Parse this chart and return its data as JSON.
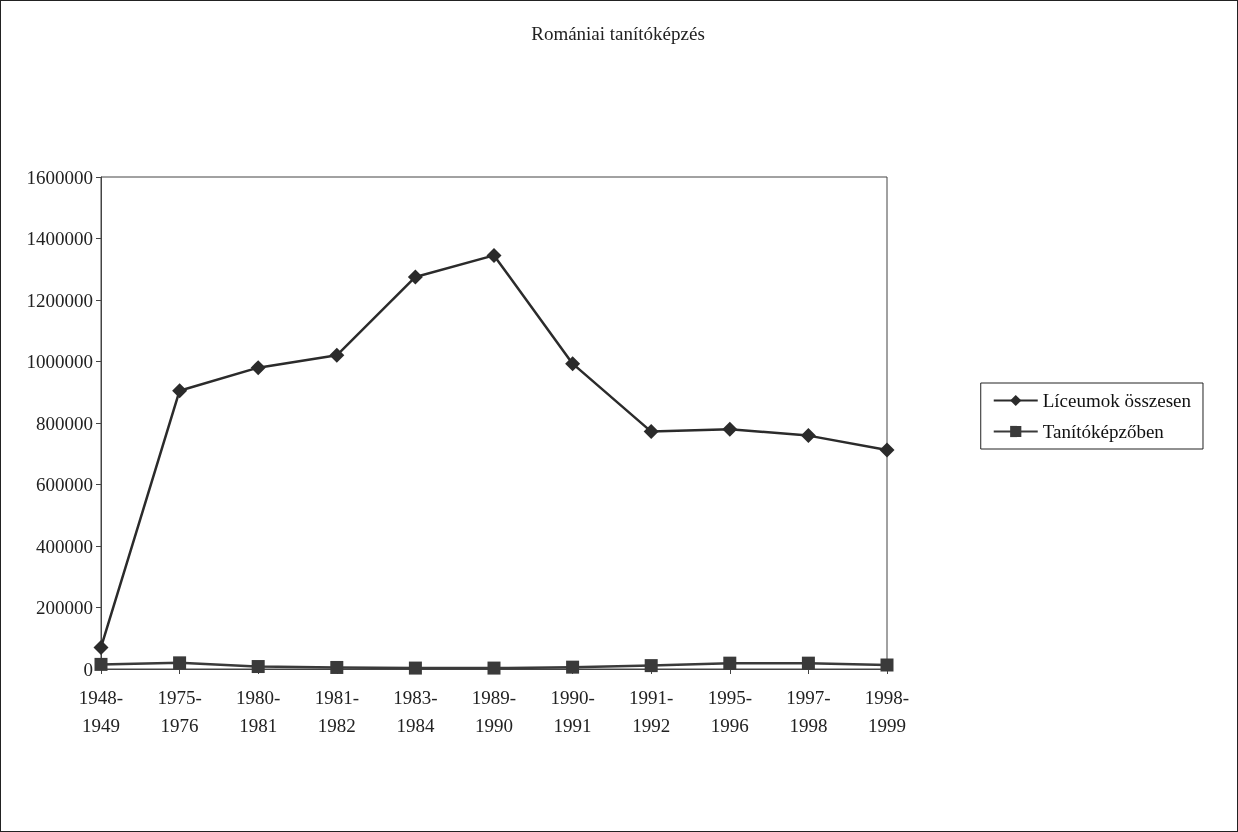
{
  "chart_data": {
    "type": "line",
    "title": "Romániai tanítóképzés",
    "categories": [
      "1948-1949",
      "1975-1976",
      "1980-1981",
      "1981-1982",
      "1983-1984",
      "1989-1990",
      "1990-1991",
      "1991-1992",
      "1995-1996",
      "1997-1998",
      "1998-1999"
    ],
    "series": [
      {
        "name": "Líceumok összesen",
        "color": "#2b2b2b",
        "marker": "diamond",
        "values": [
          70000,
          905000,
          980000,
          1020000,
          1275000,
          1345000,
          993000,
          772000,
          780000,
          759000,
          712000
        ]
      },
      {
        "name": "Tanítóképzőben",
        "color": "#3a3a3a",
        "marker": "square",
        "values": [
          15000,
          20000,
          8000,
          5000,
          3000,
          3000,
          6000,
          11000,
          19000,
          19000,
          13000
        ]
      }
    ],
    "ylim": [
      0,
      1600000
    ],
    "yticks": [
      0,
      200000,
      400000,
      600000,
      800000,
      1000000,
      1200000,
      1400000,
      1600000
    ],
    "grid": false,
    "legend": "right",
    "line_style": "solid"
  }
}
